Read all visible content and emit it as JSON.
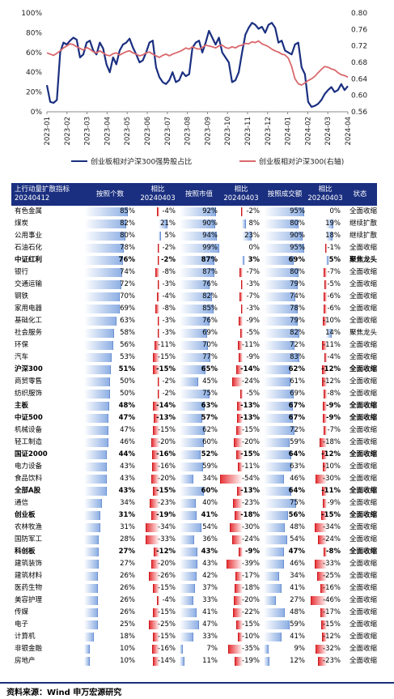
{
  "chart_data": {
    "type": "line",
    "x_ticks": [
      "2023-01",
      "2023-02",
      "2023-03",
      "2023-04",
      "2023-05",
      "2023-06",
      "2023-07",
      "2023-08",
      "2023-09",
      "2023-10",
      "2023-11",
      "2023-12",
      "2024-01",
      "2024-02",
      "2024-03",
      "2024-04"
    ],
    "y_left_ticks": [
      "0%",
      "20%",
      "40%",
      "60%",
      "80%",
      "100%"
    ],
    "y_right_ticks": [
      "0.56",
      "0.60",
      "0.64",
      "0.68",
      "0.72",
      "0.76",
      "0.80"
    ],
    "ylim_left": [
      0,
      100
    ],
    "ylim_right": [
      0.56,
      0.8
    ],
    "series": [
      {
        "name": "创业板相对沪深300强势股占比",
        "axis": "left",
        "color": "#1a2f80",
        "values": [
          27,
          10,
          9,
          12,
          60,
          70,
          68,
          72,
          75,
          73,
          55,
          58,
          70,
          72,
          62,
          58,
          70,
          64,
          48,
          40,
          55,
          48,
          62,
          68,
          70,
          74,
          65,
          58,
          50,
          52,
          60,
          70,
          72,
          45,
          35,
          30,
          28,
          32,
          40,
          30,
          32,
          40,
          36,
          38,
          65,
          70,
          72,
          60,
          70,
          82,
          75,
          68,
          75,
          60,
          55,
          50,
          30,
          32,
          40,
          60,
          78,
          85,
          90,
          88,
          84,
          86,
          80,
          88,
          90,
          85,
          70,
          72,
          62,
          60,
          58,
          68,
          70,
          45,
          38,
          10,
          5,
          6,
          8,
          12,
          18,
          22,
          25,
          20,
          22,
          28,
          22,
          26
        ]
      },
      {
        "name": "创业板相对沪深300(右轴)",
        "axis": "right",
        "color": "#d9686c",
        "values": [
          0.703,
          0.7,
          0.697,
          0.702,
          0.708,
          0.715,
          0.72,
          0.725,
          0.723,
          0.718,
          0.714,
          0.71,
          0.716,
          0.712,
          0.706,
          0.703,
          0.708,
          0.703,
          0.698,
          0.696,
          0.701,
          0.703,
          0.698,
          0.702,
          0.706,
          0.708,
          0.703,
          0.7,
          0.696,
          0.698,
          0.703,
          0.705,
          0.7,
          0.696,
          0.692,
          0.697,
          0.7,
          0.696,
          0.7,
          0.703,
          0.706,
          0.71,
          0.715,
          0.712,
          0.718,
          0.714,
          0.712,
          0.716,
          0.722,
          0.72,
          0.718,
          0.715,
          0.72,
          0.722,
          0.716,
          0.714,
          0.718,
          0.715,
          0.72,
          0.722,
          0.726,
          0.725,
          0.73,
          0.728,
          0.732,
          0.725,
          0.722,
          0.718,
          0.712,
          0.708,
          0.705,
          0.7,
          0.698,
          0.69,
          0.67,
          0.64,
          0.628,
          0.625,
          0.63,
          0.636,
          0.64,
          0.646,
          0.655,
          0.663,
          0.67,
          0.668,
          0.664,
          0.662,
          0.655,
          0.65,
          0.648,
          0.644
        ]
      }
    ],
    "legend": [
      "创业板相对沪深300强势股占比",
      "创业板相对沪深300(右轴)"
    ],
    "legend_position": "bottom"
  },
  "table": {
    "headers": {
      "name": "上行动量扩散指标 20240412",
      "count": "按照个数",
      "count_change": "相比 20240403",
      "mcap": "按照市值",
      "mcap_change": "相比 20240403",
      "turnover": "按照成交额",
      "turnover_change": "相比 20240403",
      "status": "状态"
    },
    "rows": [
      {
        "name": "有色金属",
        "bold": false,
        "count": "85%",
        "count_v": 85,
        "c1": "-4%",
        "c1_v": -4,
        "mcap": "92%",
        "mcap_v": 92,
        "c2": "-2%",
        "c2_v": -2,
        "turn": "95%",
        "turn_v": 95,
        "c3": "0%",
        "c3_v": 0,
        "status": "全面收缩"
      },
      {
        "name": "煤炭",
        "bold": false,
        "count": "82%",
        "count_v": 82,
        "c1": "21%",
        "c1_v": 21,
        "mcap": "90%",
        "mcap_v": 90,
        "c2": "8%",
        "c2_v": 8,
        "turn": "80%",
        "turn_v": 80,
        "c3": "19%",
        "c3_v": 19,
        "status": "继续扩散"
      },
      {
        "name": "公用事业",
        "bold": false,
        "count": "80%",
        "count_v": 80,
        "c1": "5%",
        "c1_v": 5,
        "mcap": "94%",
        "mcap_v": 94,
        "c2": "23%",
        "c2_v": 23,
        "turn": "90%",
        "turn_v": 90,
        "c3": "18%",
        "c3_v": 18,
        "status": "继续扩散"
      },
      {
        "name": "石油石化",
        "bold": false,
        "count": "78%",
        "count_v": 78,
        "c1": "-2%",
        "c1_v": -2,
        "mcap": "99%",
        "mcap_v": 99,
        "c2": "0%",
        "c2_v": 0,
        "turn": "95%",
        "turn_v": 95,
        "c3": "-1%",
        "c3_v": -1,
        "status": "全面收缩"
      },
      {
        "name": "中证红利",
        "bold": true,
        "count": "76%",
        "count_v": 76,
        "c1": "-2%",
        "c1_v": -2,
        "mcap": "87%",
        "mcap_v": 87,
        "c2": "3%",
        "c2_v": 3,
        "turn": "69%",
        "turn_v": 69,
        "c3": "5%",
        "c3_v": 5,
        "status": "聚焦龙头"
      },
      {
        "name": "银行",
        "bold": false,
        "count": "74%",
        "count_v": 74,
        "c1": "-8%",
        "c1_v": -8,
        "mcap": "87%",
        "mcap_v": 87,
        "c2": "-7%",
        "c2_v": -7,
        "turn": "80%",
        "turn_v": 80,
        "c3": "-7%",
        "c3_v": -7,
        "status": "全面收缩"
      },
      {
        "name": "交通运输",
        "bold": false,
        "count": "72%",
        "count_v": 72,
        "c1": "-3%",
        "c1_v": -3,
        "mcap": "76%",
        "mcap_v": 76,
        "c2": "-3%",
        "c2_v": -3,
        "turn": "79%",
        "turn_v": 79,
        "c3": "-5%",
        "c3_v": -5,
        "status": "全面收缩"
      },
      {
        "name": "钢铁",
        "bold": false,
        "count": "70%",
        "count_v": 70,
        "c1": "-4%",
        "c1_v": -4,
        "mcap": "82%",
        "mcap_v": 82,
        "c2": "-7%",
        "c2_v": -7,
        "turn": "74%",
        "turn_v": 74,
        "c3": "-6%",
        "c3_v": -6,
        "status": "全面收缩"
      },
      {
        "name": "家用电器",
        "bold": false,
        "count": "69%",
        "count_v": 69,
        "c1": "-8%",
        "c1_v": -8,
        "mcap": "85%",
        "mcap_v": 85,
        "c2": "-3%",
        "c2_v": -3,
        "turn": "78%",
        "turn_v": 78,
        "c3": "-6%",
        "c3_v": -6,
        "status": "全面收缩"
      },
      {
        "name": "基础化工",
        "bold": false,
        "count": "63%",
        "count_v": 63,
        "c1": "-3%",
        "c1_v": -3,
        "mcap": "76%",
        "mcap_v": 76,
        "c2": "-9%",
        "c2_v": -9,
        "turn": "79%",
        "turn_v": 79,
        "c3": "-10%",
        "c3_v": -10,
        "status": "全面收缩"
      },
      {
        "name": "社会服务",
        "bold": false,
        "count": "58%",
        "count_v": 58,
        "c1": "-3%",
        "c1_v": -3,
        "mcap": "69%",
        "mcap_v": 69,
        "c2": "-5%",
        "c2_v": -5,
        "turn": "82%",
        "turn_v": 82,
        "c3": "14%",
        "c3_v": 14,
        "status": "聚焦龙头"
      },
      {
        "name": "环保",
        "bold": false,
        "count": "56%",
        "count_v": 56,
        "c1": "-11%",
        "c1_v": -11,
        "mcap": "70%",
        "mcap_v": 70,
        "c2": "-11%",
        "c2_v": -11,
        "turn": "72%",
        "turn_v": 72,
        "c3": "-11%",
        "c3_v": -11,
        "status": "全面收缩"
      },
      {
        "name": "汽车",
        "bold": false,
        "count": "53%",
        "count_v": 53,
        "c1": "-15%",
        "c1_v": -15,
        "mcap": "77%",
        "mcap_v": 77,
        "c2": "-9%",
        "c2_v": -9,
        "turn": "83%",
        "turn_v": 83,
        "c3": "-4%",
        "c3_v": -4,
        "status": "全面收缩"
      },
      {
        "name": "沪深300",
        "bold": true,
        "count": "51%",
        "count_v": 51,
        "c1": "-15%",
        "c1_v": -15,
        "mcap": "65%",
        "mcap_v": 65,
        "c2": "-14%",
        "c2_v": -14,
        "turn": "62%",
        "turn_v": 62,
        "c3": "-12%",
        "c3_v": -12,
        "status": "全面收缩"
      },
      {
        "name": "商贸零售",
        "bold": false,
        "count": "50%",
        "count_v": 50,
        "c1": "-2%",
        "c1_v": -2,
        "mcap": "45%",
        "mcap_v": 45,
        "c2": "-24%",
        "c2_v": -24,
        "turn": "61%",
        "turn_v": 61,
        "c3": "-12%",
        "c3_v": -12,
        "status": "全面收缩"
      },
      {
        "name": "纺织服饰",
        "bold": false,
        "count": "50%",
        "count_v": 50,
        "c1": "-2%",
        "c1_v": -2,
        "mcap": "75%",
        "mcap_v": 75,
        "c2": "-5%",
        "c2_v": -5,
        "turn": "69%",
        "turn_v": 69,
        "c3": "-8%",
        "c3_v": -8,
        "status": "全面收缩"
      },
      {
        "name": "主板",
        "bold": true,
        "count": "48%",
        "count_v": 48,
        "c1": "-14%",
        "c1_v": -14,
        "mcap": "63%",
        "mcap_v": 63,
        "c2": "-13%",
        "c2_v": -13,
        "turn": "67%",
        "turn_v": 67,
        "c3": "-9%",
        "c3_v": -9,
        "status": "全面收缩"
      },
      {
        "name": "中证500",
        "bold": true,
        "count": "47%",
        "count_v": 47,
        "c1": "-13%",
        "c1_v": -13,
        "mcap": "57%",
        "mcap_v": 57,
        "c2": "-13%",
        "c2_v": -13,
        "turn": "67%",
        "turn_v": 67,
        "c3": "-9%",
        "c3_v": -9,
        "status": "全面收缩"
      },
      {
        "name": "机械设备",
        "bold": false,
        "count": "47%",
        "count_v": 47,
        "c1": "-15%",
        "c1_v": -15,
        "mcap": "62%",
        "mcap_v": 62,
        "c2": "-15%",
        "c2_v": -15,
        "turn": "72%",
        "turn_v": 72,
        "c3": "-7%",
        "c3_v": -7,
        "status": "全面收缩"
      },
      {
        "name": "轻工制造",
        "bold": false,
        "count": "46%",
        "count_v": 46,
        "c1": "-20%",
        "c1_v": -20,
        "mcap": "60%",
        "mcap_v": 60,
        "c2": "-20%",
        "c2_v": -20,
        "turn": "59%",
        "turn_v": 59,
        "c3": "-18%",
        "c3_v": -18,
        "status": "全面收缩"
      },
      {
        "name": "国证2000",
        "bold": true,
        "count": "44%",
        "count_v": 44,
        "c1": "-16%",
        "c1_v": -16,
        "mcap": "52%",
        "mcap_v": 52,
        "c2": "-15%",
        "c2_v": -15,
        "turn": "64%",
        "turn_v": 64,
        "c3": "-12%",
        "c3_v": -12,
        "status": "全面收缩"
      },
      {
        "name": "电力设备",
        "bold": false,
        "count": "43%",
        "count_v": 43,
        "c1": "-16%",
        "c1_v": -16,
        "mcap": "59%",
        "mcap_v": 59,
        "c2": "-11%",
        "c2_v": -11,
        "turn": "63%",
        "turn_v": 63,
        "c3": "-10%",
        "c3_v": -10,
        "status": "全面收缩"
      },
      {
        "name": "食品饮料",
        "bold": false,
        "count": "43%",
        "count_v": 43,
        "c1": "-20%",
        "c1_v": -20,
        "mcap": "34%",
        "mcap_v": 34,
        "c2": "-54%",
        "c2_v": -54,
        "turn": "46%",
        "turn_v": 46,
        "c3": "-30%",
        "c3_v": -30,
        "status": "全面收缩"
      },
      {
        "name": "全部A股",
        "bold": true,
        "count": "43%",
        "count_v": 43,
        "c1": "-15%",
        "c1_v": -15,
        "mcap": "60%",
        "mcap_v": 60,
        "c2": "-13%",
        "c2_v": -13,
        "turn": "64%",
        "turn_v": 64,
        "c3": "-11%",
        "c3_v": -11,
        "status": "全面收缩"
      },
      {
        "name": "通信",
        "bold": false,
        "count": "34%",
        "count_v": 34,
        "c1": "-23%",
        "c1_v": -23,
        "mcap": "40%",
        "mcap_v": 40,
        "c2": "-23%",
        "c2_v": -23,
        "turn": "75%",
        "turn_v": 75,
        "c3": "-9%",
        "c3_v": -9,
        "status": "全面收缩"
      },
      {
        "name": "创业板",
        "bold": true,
        "count": "31%",
        "count_v": 31,
        "c1": "-19%",
        "c1_v": -19,
        "mcap": "41%",
        "mcap_v": 41,
        "c2": "-18%",
        "c2_v": -18,
        "turn": "56%",
        "turn_v": 56,
        "c3": "-15%",
        "c3_v": -15,
        "status": "全面收缩"
      },
      {
        "name": "农林牧渔",
        "bold": false,
        "count": "31%",
        "count_v": 31,
        "c1": "-34%",
        "c1_v": -34,
        "mcap": "54%",
        "mcap_v": 54,
        "c2": "-30%",
        "c2_v": -30,
        "turn": "48%",
        "turn_v": 48,
        "c3": "-34%",
        "c3_v": -34,
        "status": "全面收缩"
      },
      {
        "name": "国防军工",
        "bold": false,
        "count": "28%",
        "count_v": 28,
        "c1": "-33%",
        "c1_v": -33,
        "mcap": "36%",
        "mcap_v": 36,
        "c2": "-24%",
        "c2_v": -24,
        "turn": "54%",
        "turn_v": 54,
        "c3": "-24%",
        "c3_v": -24,
        "status": "全面收缩"
      },
      {
        "name": "科创板",
        "bold": true,
        "count": "27%",
        "count_v": 27,
        "c1": "-12%",
        "c1_v": -12,
        "mcap": "43%",
        "mcap_v": 43,
        "c2": "-9%",
        "c2_v": -9,
        "turn": "47%",
        "turn_v": 47,
        "c3": "-8%",
        "c3_v": -8,
        "status": "全面收缩"
      },
      {
        "name": "建筑装饰",
        "bold": false,
        "count": "27%",
        "count_v": 27,
        "c1": "-20%",
        "c1_v": -20,
        "mcap": "43%",
        "mcap_v": 43,
        "c2": "-39%",
        "c2_v": -39,
        "turn": "46%",
        "turn_v": 46,
        "c3": "-33%",
        "c3_v": -33,
        "status": "全面收缩"
      },
      {
        "name": "建筑材料",
        "bold": false,
        "count": "26%",
        "count_v": 26,
        "c1": "-26%",
        "c1_v": -26,
        "mcap": "42%",
        "mcap_v": 42,
        "c2": "-17%",
        "c2_v": -17,
        "turn": "34%",
        "turn_v": 34,
        "c3": "-25%",
        "c3_v": -25,
        "status": "全面收缩"
      },
      {
        "name": "医药生物",
        "bold": false,
        "count": "26%",
        "count_v": 26,
        "c1": "-15%",
        "c1_v": -15,
        "mcap": "37%",
        "mcap_v": 37,
        "c2": "-18%",
        "c2_v": -18,
        "turn": "41%",
        "turn_v": 41,
        "c3": "-16%",
        "c3_v": -16,
        "status": "全面收缩"
      },
      {
        "name": "美容护理",
        "bold": false,
        "count": "26%",
        "count_v": 26,
        "c1": "-4%",
        "c1_v": -4,
        "mcap": "33%",
        "mcap_v": 33,
        "c2": "-20%",
        "c2_v": -20,
        "turn": "27%",
        "turn_v": 27,
        "c3": "-46%",
        "c3_v": -46,
        "status": "全面收缩"
      },
      {
        "name": "传媒",
        "bold": false,
        "count": "26%",
        "count_v": 26,
        "c1": "-15%",
        "c1_v": -15,
        "mcap": "41%",
        "mcap_v": 41,
        "c2": "-22%",
        "c2_v": -22,
        "turn": "48%",
        "turn_v": 48,
        "c3": "-17%",
        "c3_v": -17,
        "status": "全面收缩"
      },
      {
        "name": "电子",
        "bold": false,
        "count": "25%",
        "count_v": 25,
        "c1": "-25%",
        "c1_v": -25,
        "mcap": "47%",
        "mcap_v": 47,
        "c2": "-15%",
        "c2_v": -15,
        "turn": "59%",
        "turn_v": 59,
        "c3": "-15%",
        "c3_v": -15,
        "status": "全面收缩"
      },
      {
        "name": "计算机",
        "bold": false,
        "count": "18%",
        "count_v": 18,
        "c1": "-15%",
        "c1_v": -15,
        "mcap": "33%",
        "mcap_v": 33,
        "c2": "-10%",
        "c2_v": -10,
        "turn": "41%",
        "turn_v": 41,
        "c3": "-12%",
        "c3_v": -12,
        "status": "全面收缩"
      },
      {
        "name": "非银金融",
        "bold": false,
        "count": "10%",
        "count_v": 10,
        "c1": "-16%",
        "c1_v": -16,
        "mcap": "7%",
        "mcap_v": 7,
        "c2": "-35%",
        "c2_v": -35,
        "turn": "9%",
        "turn_v": 9,
        "c3": "-32%",
        "c3_v": -32,
        "status": "全面收缩"
      },
      {
        "name": "房地产",
        "bold": false,
        "count": "10%",
        "count_v": 10,
        "c1": "-14%",
        "c1_v": -14,
        "mcap": "11%",
        "mcap_v": 11,
        "c2": "-19%",
        "c2_v": -19,
        "turn": "12%",
        "turn_v": 12,
        "c3": "-23%",
        "c3_v": -23,
        "status": "全面收缩"
      }
    ]
  },
  "source": "资料来源：Wind 申万宏源研究"
}
